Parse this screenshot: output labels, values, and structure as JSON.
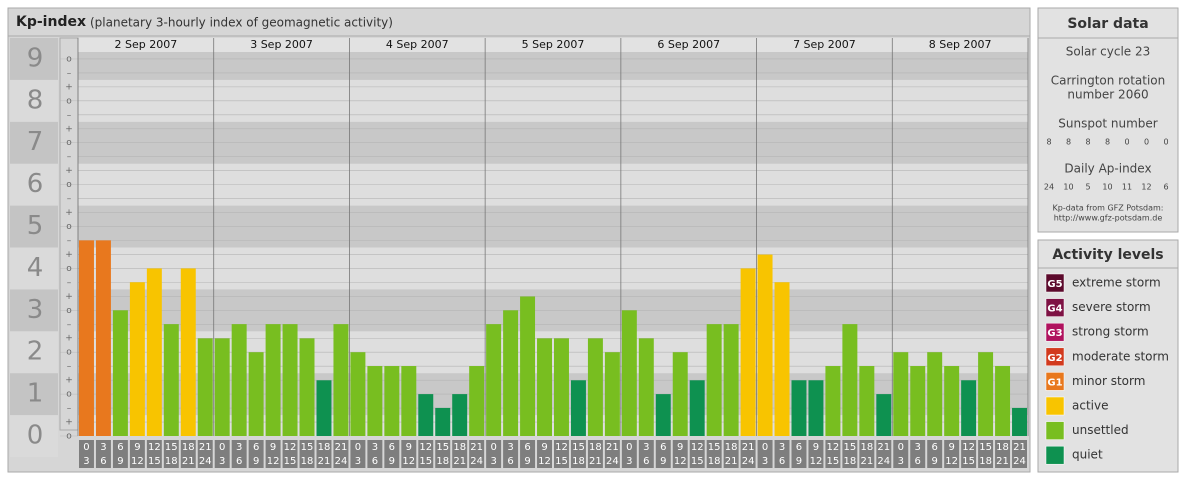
{
  "chart_data": {
    "type": "bar",
    "title": "Kp-index",
    "subtitle": "(planetary 3-hourly index of geomagnetic activity)",
    "days": [
      "2 Sep 2007",
      "3 Sep 2007",
      "4 Sep 2007",
      "5 Sep 2007",
      "6 Sep 2007",
      "7 Sep 2007",
      "8 Sep 2007"
    ],
    "hours": [
      [
        "0",
        "3"
      ],
      [
        "3",
        "6"
      ],
      [
        "6",
        "9"
      ],
      [
        "9",
        "12"
      ],
      [
        "12",
        "15"
      ],
      [
        "15",
        "18"
      ],
      [
        "18",
        "21"
      ],
      [
        "21",
        "24"
      ]
    ],
    "values": [
      4.67,
      4.67,
      3,
      3.67,
      4,
      2.67,
      4,
      2.33,
      2.33,
      2.67,
      2,
      2.67,
      2.67,
      2.33,
      1.33,
      2.67,
      2,
      1.67,
      1.67,
      1.67,
      1,
      0.67,
      1,
      1.67,
      2.67,
      3,
      3.33,
      2.33,
      2.33,
      1.33,
      2.33,
      2,
      3,
      2.33,
      1,
      2,
      1.33,
      2.67,
      2.67,
      4,
      4.33,
      3.67,
      1.33,
      1.33,
      1.67,
      2.67,
      1.67,
      1,
      2,
      1.67,
      2,
      1.67,
      1.33,
      2,
      1.67,
      0.67
    ],
    "colors": [
      "#e8781e",
      "#e8781e",
      "#78be20",
      "#f8c400",
      "#f8c400",
      "#78be20",
      "#f8c400",
      "#78be20",
      "#78be20",
      "#78be20",
      "#78be20",
      "#78be20",
      "#78be20",
      "#78be20",
      "#0e9150",
      "#78be20",
      "#78be20",
      "#78be20",
      "#78be20",
      "#78be20",
      "#0e9150",
      "#0e9150",
      "#0e9150",
      "#78be20",
      "#78be20",
      "#78be20",
      "#78be20",
      "#78be20",
      "#78be20",
      "#0e9150",
      "#78be20",
      "#78be20",
      "#78be20",
      "#78be20",
      "#0e9150",
      "#78be20",
      "#0e9150",
      "#78be20",
      "#78be20",
      "#f8c400",
      "#f8c400",
      "#f8c400",
      "#0e9150",
      "#0e9150",
      "#78be20",
      "#78be20",
      "#78be20",
      "#0e9150",
      "#78be20",
      "#78be20",
      "#78be20",
      "#78be20",
      "#0e9150",
      "#78be20",
      "#78be20",
      "#0e9150"
    ],
    "ylim": [
      0,
      9.5
    ],
    "yticks": [
      0,
      1,
      2,
      3,
      4,
      5,
      6,
      7,
      8,
      9
    ],
    "minor_labels": [
      "–",
      "o",
      "+"
    ],
    "grid": true
  },
  "solar_data": {
    "title": "Solar data",
    "cycle": "Solar cycle 23",
    "carrington": [
      "Carrington rotation",
      "number 2060"
    ],
    "sunspot_title": "Sunspot number",
    "sunspot": [
      8,
      8,
      8,
      8,
      0,
      0,
      0
    ],
    "ap_title": "Daily Ap-index",
    "ap": [
      24,
      10,
      5,
      10,
      11,
      12,
      6
    ],
    "note": [
      "Kp-data from GFZ Potsdam:",
      "http://www.gfz-potsdam.de"
    ]
  },
  "activity_levels": {
    "title": "Activity levels",
    "items": [
      {
        "code": "G5",
        "label": "extreme storm",
        "color": "#5c0a2c"
      },
      {
        "code": "G4",
        "label": "severe storm",
        "color": "#7e1244"
      },
      {
        "code": "G3",
        "label": "strong storm",
        "color": "#b0125e"
      },
      {
        "code": "G2",
        "label": "moderate storm",
        "color": "#d23a1e"
      },
      {
        "code": "G1",
        "label": "minor storm",
        "color": "#e8781e"
      },
      {
        "code": null,
        "label": "active",
        "color": "#f8c400"
      },
      {
        "code": null,
        "label": "unsettled",
        "color": "#78be20"
      },
      {
        "code": null,
        "label": "quiet",
        "color": "#0e9150"
      }
    ]
  }
}
